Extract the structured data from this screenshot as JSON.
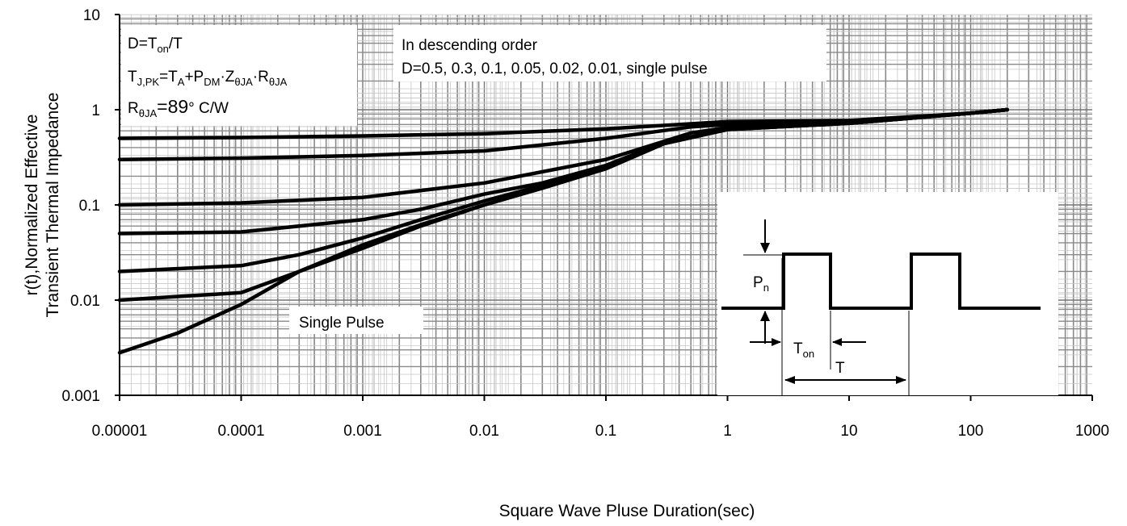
{
  "chart_data": {
    "type": "line",
    "xscale": "log",
    "yscale": "log",
    "xlim": [
      1e-05,
      1000
    ],
    "ylim": [
      0.001,
      10
    ],
    "grid": true,
    "xlabel": "Square Wave Pluse Duration(sec)",
    "ylabel_lines": [
      "r(t),Normalized Effective",
      "Transient Thermal Impedance"
    ],
    "x_ticks": [
      {
        "value": 1e-05,
        "label": "0.00001"
      },
      {
        "value": 0.0001,
        "label": "0.0001"
      },
      {
        "value": 0.001,
        "label": "0.001"
      },
      {
        "value": 0.01,
        "label": "0.01"
      },
      {
        "value": 0.1,
        "label": "0.1"
      },
      {
        "value": 1,
        "label": "1"
      },
      {
        "value": 10,
        "label": "10"
      },
      {
        "value": 100,
        "label": "100"
      },
      {
        "value": 1000,
        "label": "1000"
      }
    ],
    "y_ticks": [
      {
        "value": 10,
        "label": "10"
      },
      {
        "value": 1,
        "label": "1"
      },
      {
        "value": 0.1,
        "label": "0.1"
      },
      {
        "value": 0.01,
        "label": "0.01"
      },
      {
        "value": 0.001,
        "label": "0.001"
      }
    ],
    "series": [
      {
        "name": "0.5",
        "x": [
          1e-05,
          0.0001,
          0.001,
          0.01,
          0.1,
          1,
          10,
          100,
          200
        ],
        "y": [
          0.5,
          0.51,
          0.53,
          0.56,
          0.63,
          0.75,
          0.77,
          0.92,
          1.0
        ]
      },
      {
        "name": "0.3",
        "x": [
          1e-05,
          0.0001,
          0.001,
          0.01,
          0.1,
          0.5,
          1,
          10,
          100,
          200
        ],
        "y": [
          0.3,
          0.31,
          0.33,
          0.37,
          0.5,
          0.66,
          0.7,
          0.75,
          0.92,
          1.0
        ]
      },
      {
        "name": "0.1",
        "x": [
          1e-05,
          0.0001,
          0.001,
          0.01,
          0.1,
          0.5,
          1,
          10,
          100,
          200
        ],
        "y": [
          0.1,
          0.105,
          0.12,
          0.17,
          0.3,
          0.57,
          0.65,
          0.73,
          0.92,
          1.0
        ]
      },
      {
        "name": "0.05",
        "x": [
          1e-05,
          0.0001,
          0.001,
          0.003,
          0.01,
          0.03,
          0.1,
          0.3,
          1,
          10,
          100,
          200
        ],
        "y": [
          0.05,
          0.052,
          0.07,
          0.09,
          0.13,
          0.17,
          0.26,
          0.45,
          0.63,
          0.72,
          0.92,
          1.0
        ]
      },
      {
        "name": "0.02",
        "x": [
          1e-05,
          0.0001,
          0.0003,
          0.001,
          0.003,
          0.01,
          0.03,
          0.1,
          0.3,
          1,
          10,
          100,
          200
        ],
        "y": [
          0.02,
          0.023,
          0.03,
          0.045,
          0.07,
          0.11,
          0.16,
          0.25,
          0.45,
          0.62,
          0.72,
          0.92,
          1.0
        ]
      },
      {
        "name": "0.01",
        "x": [
          1e-05,
          0.0001,
          0.0003,
          0.001,
          0.003,
          0.01,
          0.03,
          0.1,
          0.3,
          1,
          10,
          100,
          200
        ],
        "y": [
          0.01,
          0.012,
          0.02,
          0.038,
          0.062,
          0.1,
          0.15,
          0.24,
          0.44,
          0.62,
          0.72,
          0.92,
          1.0
        ]
      },
      {
        "name": "single pulse",
        "x": [
          1e-05,
          3e-05,
          0.0001,
          0.0003,
          0.001,
          0.003,
          0.01,
          0.03,
          0.1,
          0.3,
          1,
          10,
          100,
          200
        ],
        "y": [
          0.0028,
          0.0045,
          0.009,
          0.02,
          0.035,
          0.06,
          0.1,
          0.15,
          0.24,
          0.44,
          0.62,
          0.72,
          0.92,
          1.0
        ]
      }
    ],
    "annotations": {
      "info_box": {
        "line1_main": "D=T",
        "line1_sub": "on",
        "line1_tail": "/T",
        "line2": [
          [
            "T",
            ""
          ],
          [
            "J,PK",
            "sub"
          ],
          [
            "=T",
            ""
          ],
          [
            "A",
            "sub"
          ],
          [
            "+P",
            ""
          ],
          [
            "DM",
            "sub"
          ],
          [
            "·Z",
            ""
          ],
          [
            "θJA",
            "sub"
          ],
          [
            "·R",
            ""
          ],
          [
            "θJA",
            "sub"
          ]
        ],
        "line3_main": "R",
        "line3_sub": "θJA",
        "line3_value": "=89",
        "line3_unit": "°  C/W"
      },
      "order_box": {
        "line1": "In descending order",
        "line2": "D=0.5, 0.3, 0.1, 0.05, 0.02, 0.01, single pulse"
      },
      "single_pulse_label": "Single Pulse",
      "inset": {
        "pdm_main": "P",
        "pdm_sub": "n",
        "ton_main": "T",
        "ton_sub": "on",
        "period_label": "T"
      }
    }
  }
}
